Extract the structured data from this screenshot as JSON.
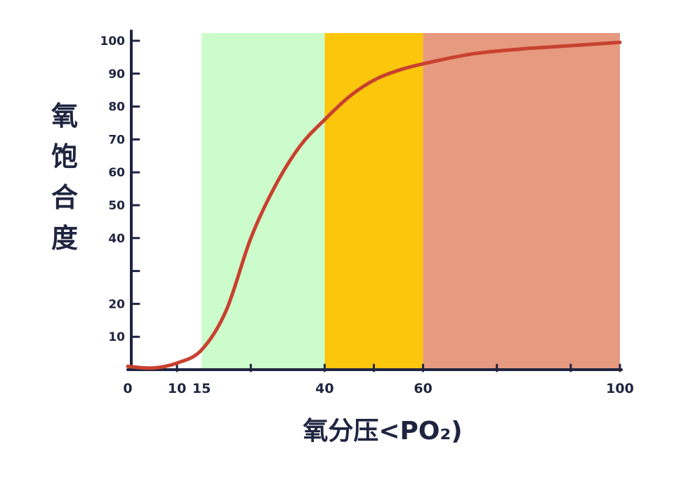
{
  "chart_data": {
    "type": "line",
    "title": "",
    "xlabel": "氧分压<PO₂)",
    "ylabel_chars": [
      "氧",
      "饱",
      "合",
      "度"
    ],
    "xlim": [
      0,
      100
    ],
    "ylim": [
      0,
      100
    ],
    "x_ticks": [
      0,
      10,
      15,
      40,
      60,
      100
    ],
    "y_ticks": [
      10,
      20,
      40,
      50,
      60,
      70,
      80,
      90,
      100
    ],
    "regions": [
      {
        "from": 15,
        "to": 40,
        "color": "#ccfccc"
      },
      {
        "from": 40,
        "to": 60,
        "color": "#fcc60d"
      },
      {
        "from": 60,
        "to": 100,
        "color": "#e69a80"
      }
    ],
    "series": [
      {
        "color": "#c8412f",
        "x": [
          0,
          5,
          10,
          15,
          20,
          25,
          30,
          35,
          40,
          45,
          50,
          55,
          60,
          70,
          80,
          90,
          100
        ],
        "y": [
          1,
          0.5,
          2,
          6,
          18,
          40,
          56,
          68,
          76,
          83,
          88,
          91,
          93,
          96,
          97.5,
          98.5,
          99.5
        ]
      }
    ],
    "grid": false,
    "legend": "none"
  }
}
